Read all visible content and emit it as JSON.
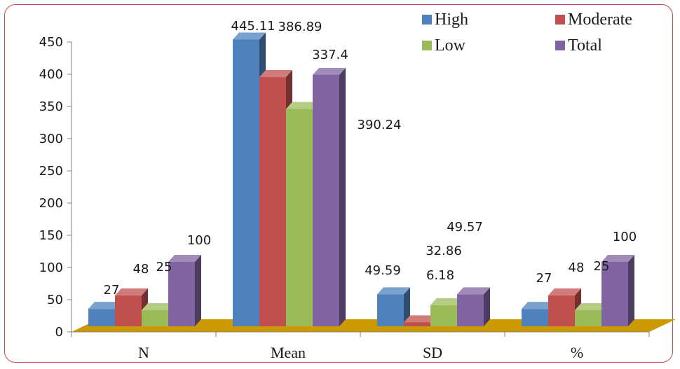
{
  "chart_data": {
    "type": "bar",
    "categories": [
      "N",
      "Mean",
      "SD",
      "%"
    ],
    "series": [
      {
        "name": "High",
        "values": [
          27,
          445.11,
          49.59,
          27
        ]
      },
      {
        "name": "Moderate",
        "values": [
          48,
          386.89,
          6.18,
          48
        ]
      },
      {
        "name": "Low",
        "values": [
          25,
          337.4,
          32.86,
          25
        ]
      },
      {
        "name": "Total",
        "values": [
          100,
          390.24,
          49.57,
          100
        ]
      }
    ],
    "ylim": [
      0,
      450
    ],
    "yticks": [
      "0",
      "50",
      "100",
      "150",
      "200",
      "250",
      "300",
      "350",
      "400",
      "450"
    ],
    "legend_position": "top-right",
    "three_d": true,
    "colors": {
      "High": "#4f81bd",
      "Moderate": "#c0504d",
      "Low": "#9bbb59",
      "Total": "#8064a2",
      "floor": "#cc9900",
      "frame": "#c0504d"
    }
  }
}
